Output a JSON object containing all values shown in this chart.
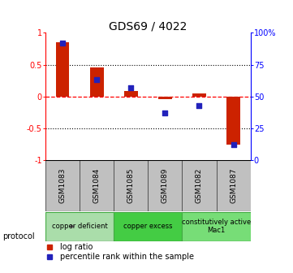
{
  "title": "GDS69 / 4022",
  "samples": [
    "GSM1083",
    "GSM1084",
    "GSM1085",
    "GSM1089",
    "GSM1082",
    "GSM1087"
  ],
  "log_ratios": [
    0.85,
    0.45,
    0.08,
    -0.04,
    0.05,
    -0.75
  ],
  "percentile_ranks": [
    92,
    63,
    57,
    37,
    43,
    12
  ],
  "ylim_left": [
    -1,
    1
  ],
  "ylim_right": [
    0,
    100
  ],
  "yticks_left": [
    -1,
    -0.5,
    0,
    0.5,
    1
  ],
  "ytick_labels_left": [
    "-1",
    "-0.5",
    "0",
    "0.5",
    "1"
  ],
  "yticks_right": [
    0,
    25,
    50,
    75,
    100
  ],
  "ytick_labels_right": [
    "0",
    "25",
    "50",
    "75",
    "100%"
  ],
  "hline_dotted_values": [
    0.5,
    -0.5
  ],
  "hline_dashed_value": 0,
  "bar_color": "#cc2200",
  "scatter_color": "#2222bb",
  "groups": [
    {
      "label": "copper deficient",
      "color": "#aaddaa",
      "start": 0,
      "end": 1
    },
    {
      "label": "copper excess",
      "color": "#44cc44",
      "start": 2,
      "end": 3
    },
    {
      "label": "constitutively active\nMac1",
      "color": "#77dd77",
      "start": 4,
      "end": 5
    }
  ],
  "protocol_label": "protocol",
  "legend_bar_label": "log ratio",
  "legend_scatter_label": "percentile rank within the sample",
  "background_color": "#ffffff",
  "sample_box_color": "#c0c0c0",
  "title_fontsize": 10,
  "tick_fontsize": 7,
  "legend_fontsize": 7
}
